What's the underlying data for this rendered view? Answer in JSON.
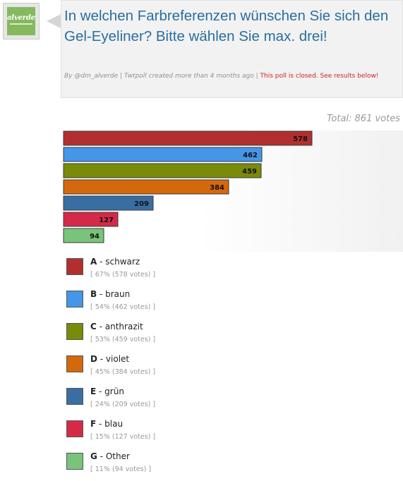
{
  "poll": {
    "avatar_brand": "alverde",
    "question": "In welchen Farbreferenzen wünschen Sie sich den Gel-Eyeliner? Bitte wählen Sie max. drei!",
    "meta_by": "By @dm_alverde | Twtpoll created more than 4 months ago | ",
    "meta_closed": "This poll is closed. See results below!",
    "total": "Total: 861 votes"
  },
  "chart_data": {
    "type": "bar",
    "orientation": "horizontal",
    "categories": [
      "A - schwarz",
      "B - braun",
      "C - anthrazit",
      "D - violet",
      "E - grün",
      "F - blau",
      "G - Other"
    ],
    "values": [
      578,
      462,
      459,
      384,
      209,
      127,
      94
    ],
    "value_labels": [
      "578",
      "462",
      "459",
      "384",
      "209",
      "127",
      "94"
    ],
    "percents": [
      67,
      54,
      53,
      45,
      24,
      15,
      11
    ],
    "total_votes": 861,
    "colors": [
      "#b22f2f",
      "#4596e8",
      "#7a8b0a",
      "#d4680d",
      "#3a6ea3",
      "#d42a48",
      "#79c47a"
    ],
    "xlim": [
      0,
      578
    ],
    "grid": false,
    "legend": "below"
  },
  "legend": [
    {
      "letter": "A",
      "label": " - schwarz",
      "stats": "[ 67% (578 votes) ]",
      "color": "#b22f2f"
    },
    {
      "letter": "B",
      "label": " - braun",
      "stats": "[ 54% (462 votes) ]",
      "color": "#4596e8"
    },
    {
      "letter": "C",
      "label": " - anthrazit",
      "stats": "[ 53% (459 votes) ]",
      "color": "#7a8b0a"
    },
    {
      "letter": "D",
      "label": " - violet",
      "stats": "[ 45% (384 votes) ]",
      "color": "#d4680d"
    },
    {
      "letter": "E",
      "label": " - grün",
      "stats": "[ 24% (209 votes) ]",
      "color": "#3a6ea3"
    },
    {
      "letter": "F",
      "label": " - blau",
      "stats": "[ 15% (127 votes) ]",
      "color": "#d42a48"
    },
    {
      "letter": "G",
      "label": " - Other",
      "stats": "[ 11% (94 votes) ]",
      "color": "#79c47a"
    }
  ]
}
